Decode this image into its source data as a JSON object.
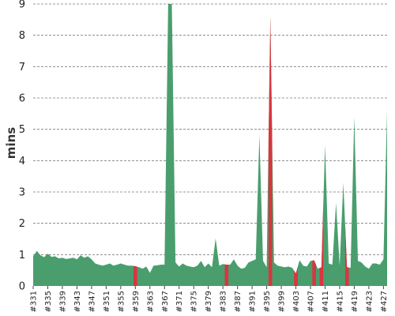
{
  "chart_data": {
    "type": "area",
    "title": "",
    "xlabel": "",
    "ylabel": "mins",
    "ylim": [
      0,
      9
    ],
    "yticks": [
      0,
      1,
      2,
      3,
      4,
      5,
      6,
      7,
      8,
      9
    ],
    "grid": true,
    "legend": "none",
    "colors": {
      "normal": "#4a9e6e",
      "alert": "#d9363e"
    },
    "x_start": 331,
    "x_end": 428,
    "x_tick_labels": [
      "#331",
      "#335",
      "#339",
      "#343",
      "#347",
      "#351",
      "#355",
      "#359",
      "#363",
      "#367",
      "#371",
      "#375",
      "#379",
      "#383",
      "#387",
      "#391",
      "#395",
      "#399",
      "#403",
      "#407",
      "#411",
      "#415",
      "#419",
      "#423",
      "#427"
    ],
    "values": [
      0.95,
      1.12,
      0.98,
      0.92,
      1.03,
      0.93,
      0.95,
      0.88,
      0.9,
      0.86,
      0.88,
      0.9,
      0.85,
      0.98,
      0.9,
      0.95,
      0.85,
      0.72,
      0.68,
      0.65,
      0.68,
      0.72,
      0.65,
      0.68,
      0.72,
      0.68,
      0.65,
      0.65,
      0.63,
      0.6,
      0.55,
      0.62,
      0.42,
      0.65,
      0.66,
      0.68,
      0.68,
      9,
      9,
      0.75,
      0.62,
      0.72,
      0.65,
      0.62,
      0.6,
      0.65,
      0.8,
      0.6,
      0.72,
      0.6,
      1.52,
      0.65,
      0.7,
      0.68,
      0.68,
      0.85,
      0.65,
      0.55,
      0.58,
      0.75,
      0.8,
      0.85,
      4.82,
      0.8,
      0.6,
      8.6,
      0.75,
      0.65,
      0.62,
      0.6,
      0.62,
      0.58,
      0.4,
      0.82,
      0.65,
      0.62,
      0.8,
      0.82,
      0.55,
      0.6,
      4.5,
      0.72,
      0.68,
      2.65,
      0.65,
      3.3,
      0.6,
      0.58,
      5.4,
      0.8,
      0.75,
      0.62,
      0.55,
      0.72,
      0.72,
      0.68,
      0.85,
      5.6
    ],
    "alert_indices": [
      28,
      53,
      65,
      72,
      77,
      79,
      86
    ]
  }
}
